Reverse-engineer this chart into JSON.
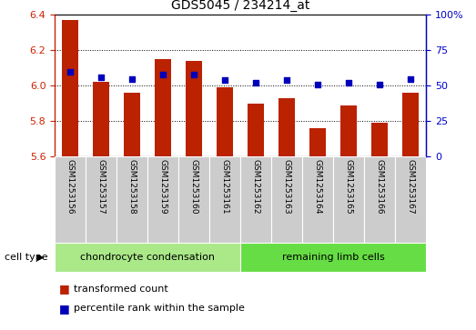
{
  "title": "GDS5045 / 234214_at",
  "samples": [
    "GSM1253156",
    "GSM1253157",
    "GSM1253158",
    "GSM1253159",
    "GSM1253160",
    "GSM1253161",
    "GSM1253162",
    "GSM1253163",
    "GSM1253164",
    "GSM1253165",
    "GSM1253166",
    "GSM1253167"
  ],
  "red_values": [
    6.37,
    6.02,
    5.96,
    6.15,
    6.14,
    5.99,
    5.9,
    5.93,
    5.76,
    5.89,
    5.79,
    5.96
  ],
  "blue_values": [
    60,
    56,
    55,
    58,
    58,
    54,
    52,
    54,
    51,
    52,
    51,
    55
  ],
  "ylim_left": [
    5.6,
    6.4
  ],
  "ylim_right": [
    0,
    100
  ],
  "yticks_left": [
    5.6,
    5.8,
    6.0,
    6.2,
    6.4
  ],
  "yticks_right": [
    0,
    25,
    50,
    75,
    100
  ],
  "bar_color": "#bb2200",
  "dot_color": "#0000bb",
  "bar_bottom": 5.6,
  "cell_type_groups": [
    {
      "label": "chondrocyte condensation",
      "start": 0,
      "end": 6,
      "color": "#aae888"
    },
    {
      "label": "remaining limb cells",
      "start": 6,
      "end": 12,
      "color": "#66dd44"
    }
  ],
  "cell_type_label": "cell type",
  "legend_red": "transformed count",
  "legend_blue": "percentile rank within the sample",
  "tick_label_color_left": "#cc2200",
  "tick_label_color_right": "#0000cc",
  "xtick_bg": "#cccccc"
}
